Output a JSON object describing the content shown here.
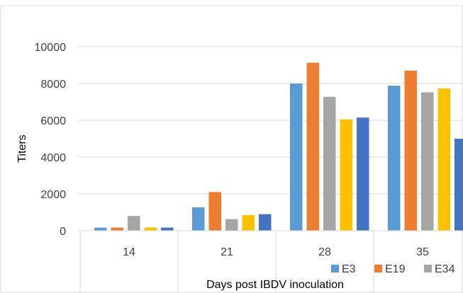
{
  "chart_data": {
    "type": "bar",
    "categories": [
      "14",
      "21",
      "28",
      "35"
    ],
    "series": [
      {
        "name": "E3",
        "color": "#5B9BD5",
        "values": [
          170,
          1270,
          8000,
          7880
        ]
      },
      {
        "name": "E19",
        "color": "#ED7D31",
        "values": [
          170,
          2100,
          9130,
          8700
        ]
      },
      {
        "name": "E34",
        "color": "#A5A5A5",
        "values": [
          800,
          630,
          7280,
          7520
        ]
      },
      {
        "name": "",
        "color": "#FFC000",
        "values": [
          180,
          850,
          6050,
          7730
        ]
      },
      {
        "name": "",
        "color": "#4472C4",
        "values": [
          170,
          900,
          6150,
          5000
        ]
      }
    ],
    "xlabel": "Days post IBDV inoculation",
    "ylabel": "Titers",
    "yticks": [
      "0",
      "2000",
      "4000",
      "6000",
      "8000",
      "10000"
    ],
    "ylim": [
      0,
      10000
    ],
    "grid": true,
    "legend_position": "bottom-right"
  }
}
